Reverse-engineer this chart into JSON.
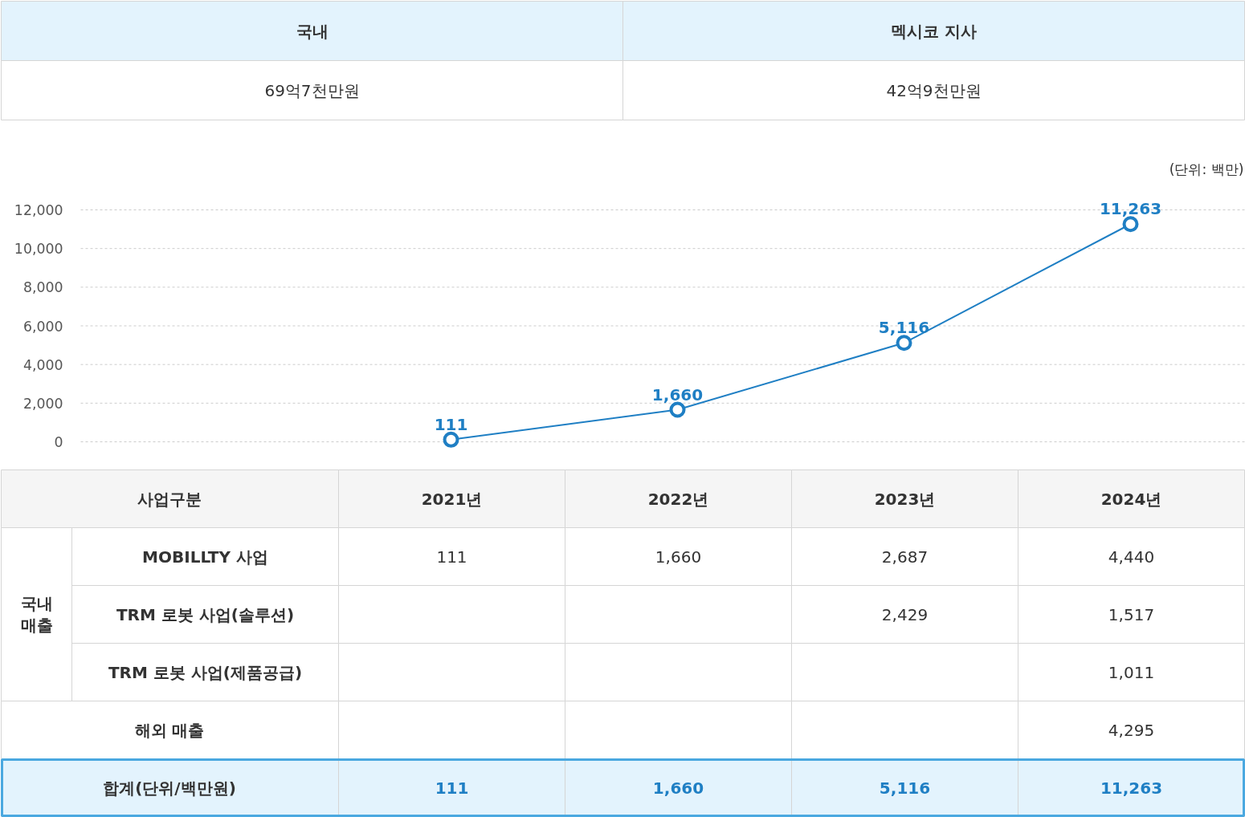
{
  "chart_data": {
    "type": "line",
    "categories": [
      null,
      null,
      null,
      null
    ],
    "tick_labels": "y",
    "series": [
      {
        "color": "#1f7fc4",
        "values": [
          111,
          1660,
          5116,
          11263
        ]
      }
    ],
    "ylim": [
      0,
      12000
    ],
    "yticks": [
      {
        "value": 0,
        "label": "0"
      },
      {
        "value": 2000,
        "label": "2,000"
      },
      {
        "value": 4000,
        "label": "4,000"
      },
      {
        "value": 6000,
        "label": "6,000"
      },
      {
        "value": 8000,
        "label": "8,000"
      },
      {
        "value": 10000,
        "label": "10,000"
      },
      {
        "value": 12000,
        "label": "12,000"
      }
    ],
    "value_labels": [
      "111",
      "1,660",
      "5,116",
      "11,263"
    ],
    "grid": "y",
    "marker": "circle",
    "line_style": "solid",
    "annotations": [
      "(단위: 백만)",
      "국내",
      "멕시코 지사",
      "69억7천만원",
      "42억9천만원",
      "사업구분",
      "2021년",
      "2022년",
      "2023년",
      "2024년",
      "국내 매출",
      "MOBILLTY 사업",
      "111",
      "1,660",
      "2,687",
      "4,440",
      "TRM 로봇 사업(솔루션)",
      "2,429",
      "1,517",
      "TRM 로봇 사업(제품공급)",
      "1,011",
      "해외 매출",
      "4,295",
      "합계(단위/백만원)",
      "111",
      "1,660",
      "5,116",
      "11,263"
    ]
  }
}
